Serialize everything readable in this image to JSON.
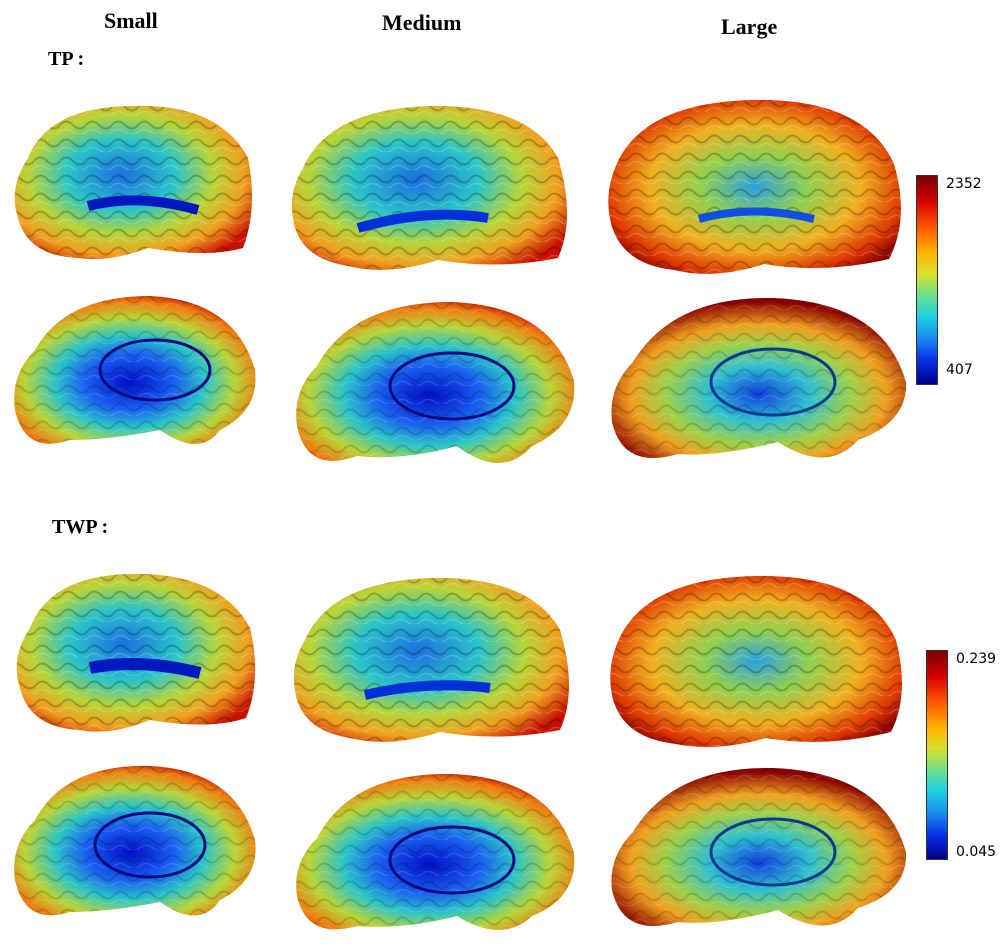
{
  "columns": {
    "small": "Small",
    "medium": "Medium",
    "large": "Large"
  },
  "sections": {
    "tp": {
      "label": "TP :",
      "colorbar_max": "2352",
      "colorbar_min": "407"
    },
    "twp": {
      "label": "TWP :",
      "colorbar_max": "0.239",
      "colorbar_min": "0.045"
    }
  },
  "colors": {
    "deep_blue": "#0010c8",
    "cyan": "#22c8e0",
    "yellow": "#d8d838",
    "orange": "#f08a10",
    "dark_red": "#8a0000"
  }
}
